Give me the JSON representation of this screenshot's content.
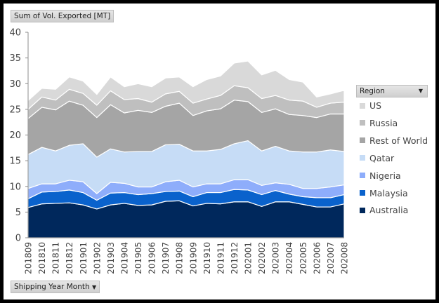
{
  "value_field_label": "Sum of Vol. Exported [MT]",
  "axis_field_label": "Shipping Year Month",
  "legend_field_label": "Region",
  "chart_data": {
    "type": "area",
    "stacked": true,
    "ylim": [
      0,
      40
    ],
    "yticks": [
      0,
      5,
      10,
      15,
      20,
      25,
      30,
      35,
      40
    ],
    "grid": false,
    "legend_position": "right",
    "categories": [
      "201809",
      "201810",
      "201811",
      "201812",
      "201901",
      "201902",
      "201903",
      "201904",
      "201905",
      "201906",
      "201907",
      "201908",
      "201909",
      "201910",
      "201911",
      "201912",
      "202001",
      "202002",
      "202003",
      "202004",
      "202005",
      "202006",
      "202007",
      "202008"
    ],
    "series": [
      {
        "name": "Australia",
        "color": "#00285c",
        "values": [
          5.9,
          6.6,
          6.7,
          6.8,
          6.4,
          5.6,
          6.4,
          6.7,
          6.3,
          6.4,
          7.1,
          7.2,
          6.2,
          6.7,
          6.6,
          7.0,
          7.0,
          6.1,
          7.0,
          7.0,
          6.5,
          6.0,
          6.0,
          6.6
        ]
      },
      {
        "name": "Malaysia",
        "color": "#0a62cc",
        "values": [
          1.7,
          2.3,
          2.3,
          2.5,
          2.4,
          1.7,
          2.3,
          2.1,
          2.1,
          2.2,
          1.9,
          1.9,
          1.8,
          2.1,
          2.2,
          2.4,
          2.3,
          2.3,
          2.2,
          1.5,
          1.5,
          1.8,
          1.8,
          1.8
        ]
      },
      {
        "name": "Nigeria",
        "color": "#8eadfb",
        "values": [
          2.0,
          1.6,
          1.5,
          1.9,
          2.1,
          1.3,
          2.1,
          1.8,
          1.5,
          1.3,
          1.9,
          2.1,
          1.9,
          1.7,
          1.7,
          1.9,
          2.0,
          1.8,
          1.5,
          1.9,
          1.6,
          1.8,
          2.1,
          1.9
        ]
      },
      {
        "name": "Qatar",
        "color": "#c6dcf6",
        "values": [
          6.6,
          7.1,
          6.4,
          6.8,
          7.4,
          7.1,
          6.5,
          6.1,
          6.9,
          6.9,
          7.2,
          7.0,
          7.0,
          6.4,
          6.7,
          7.0,
          7.6,
          6.7,
          7.1,
          6.5,
          7.1,
          7.1,
          7.2,
          6.5
        ]
      },
      {
        "name": "Rest of World",
        "color": "#a5a5a5",
        "values": [
          7.0,
          7.8,
          8.0,
          8.6,
          7.5,
          7.7,
          8.6,
          7.6,
          8.0,
          7.6,
          7.5,
          8.0,
          6.9,
          7.8,
          7.9,
          8.5,
          7.6,
          7.5,
          7.3,
          7.1,
          7.1,
          6.7,
          7.0,
          7.3
        ]
      },
      {
        "name": "Russia",
        "color": "#bfbfbf",
        "values": [
          1.8,
          2.0,
          1.9,
          2.3,
          2.3,
          2.4,
          2.7,
          2.6,
          2.3,
          2.0,
          2.4,
          2.3,
          2.4,
          2.3,
          2.6,
          2.8,
          2.7,
          2.7,
          2.6,
          2.8,
          2.8,
          2.0,
          2.1,
          2.3
        ]
      },
      {
        "name": "US",
        "color": "#d9d9d9",
        "values": [
          1.7,
          1.7,
          2.1,
          2.4,
          2.4,
          2.1,
          2.7,
          2.5,
          2.9,
          3.0,
          3.1,
          2.8,
          3.2,
          3.8,
          3.8,
          4.4,
          5.2,
          4.6,
          4.9,
          4.0,
          3.7,
          2.0,
          1.8,
          2.3
        ]
      }
    ],
    "legend_order": [
      "US",
      "Russia",
      "Rest of World",
      "Qatar",
      "Nigeria",
      "Malaysia",
      "Australia"
    ]
  }
}
